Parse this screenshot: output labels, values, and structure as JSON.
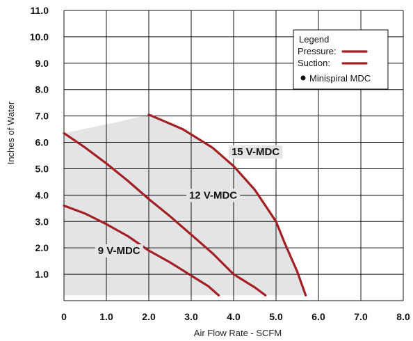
{
  "chart_data": {
    "type": "line",
    "title": "",
    "xlabel": "Air Flow Rate - SCFM",
    "ylabel": "Inches of Water",
    "xlim": [
      0,
      8
    ],
    "ylim": [
      0,
      11
    ],
    "x_ticks": [
      "0",
      "1.0",
      "2.0",
      "3.0",
      "4.0",
      "5.0",
      "6.0",
      "7.0",
      "8.0"
    ],
    "y_ticks": [
      "1.0",
      "2.0",
      "3.0",
      "4.0",
      "5.0",
      "6.0",
      "7.0",
      "8.0",
      "9.0",
      "10.0",
      "11.0"
    ],
    "grid": true,
    "colors": {
      "curve": "#a31f24",
      "fill": "#e3e4e6",
      "grid": "#111111"
    },
    "legend": {
      "title": "Legend",
      "placement": "top-right",
      "entries": [
        {
          "label": "Pressure:",
          "kind": "line"
        },
        {
          "label": "Suction:",
          "kind": "line"
        },
        {
          "label": "Minispiral MDC",
          "kind": "dot"
        }
      ]
    },
    "operating_region": [
      [
        0,
        6.35
      ],
      [
        0.6,
        6.55
      ],
      [
        1.2,
        6.75
      ],
      [
        2.0,
        7.05
      ],
      [
        2.8,
        6.5
      ],
      [
        3.5,
        5.8
      ],
      [
        4.0,
        5.1
      ],
      [
        4.5,
        4.2
      ],
      [
        5.0,
        3.0
      ],
      [
        5.2,
        2.2
      ],
      [
        5.5,
        1.1
      ],
      [
        5.7,
        0.2
      ],
      [
        0,
        0.2
      ]
    ],
    "series": [
      {
        "name": "15 V-MDC",
        "label_at": [
          3.95,
          5.65
        ],
        "points": [
          [
            2.0,
            7.05
          ],
          [
            2.8,
            6.5
          ],
          [
            3.5,
            5.8
          ],
          [
            4.0,
            5.1
          ],
          [
            4.5,
            4.2
          ],
          [
            5.0,
            3.0
          ],
          [
            5.2,
            2.2
          ],
          [
            5.5,
            1.1
          ],
          [
            5.7,
            0.2
          ]
        ]
      },
      {
        "name": "12 V-MDC",
        "label_at": [
          2.95,
          4.0
        ],
        "points": [
          [
            0,
            6.35
          ],
          [
            0.5,
            5.8
          ],
          [
            1.0,
            5.2
          ],
          [
            1.5,
            4.55
          ],
          [
            2.0,
            3.85
          ],
          [
            2.5,
            3.2
          ],
          [
            3.0,
            2.5
          ],
          [
            3.5,
            1.8
          ],
          [
            4.0,
            1.0
          ],
          [
            4.5,
            0.5
          ],
          [
            4.75,
            0.2
          ]
        ]
      },
      {
        "name": "9 V-MDC",
        "label_at": [
          0.8,
          1.9
        ],
        "points": [
          [
            0,
            3.6
          ],
          [
            0.5,
            3.3
          ],
          [
            1.0,
            2.9
          ],
          [
            1.5,
            2.45
          ],
          [
            2.0,
            1.9
          ],
          [
            2.5,
            1.45
          ],
          [
            3.0,
            0.95
          ],
          [
            3.4,
            0.55
          ],
          [
            3.65,
            0.2
          ]
        ]
      }
    ]
  }
}
